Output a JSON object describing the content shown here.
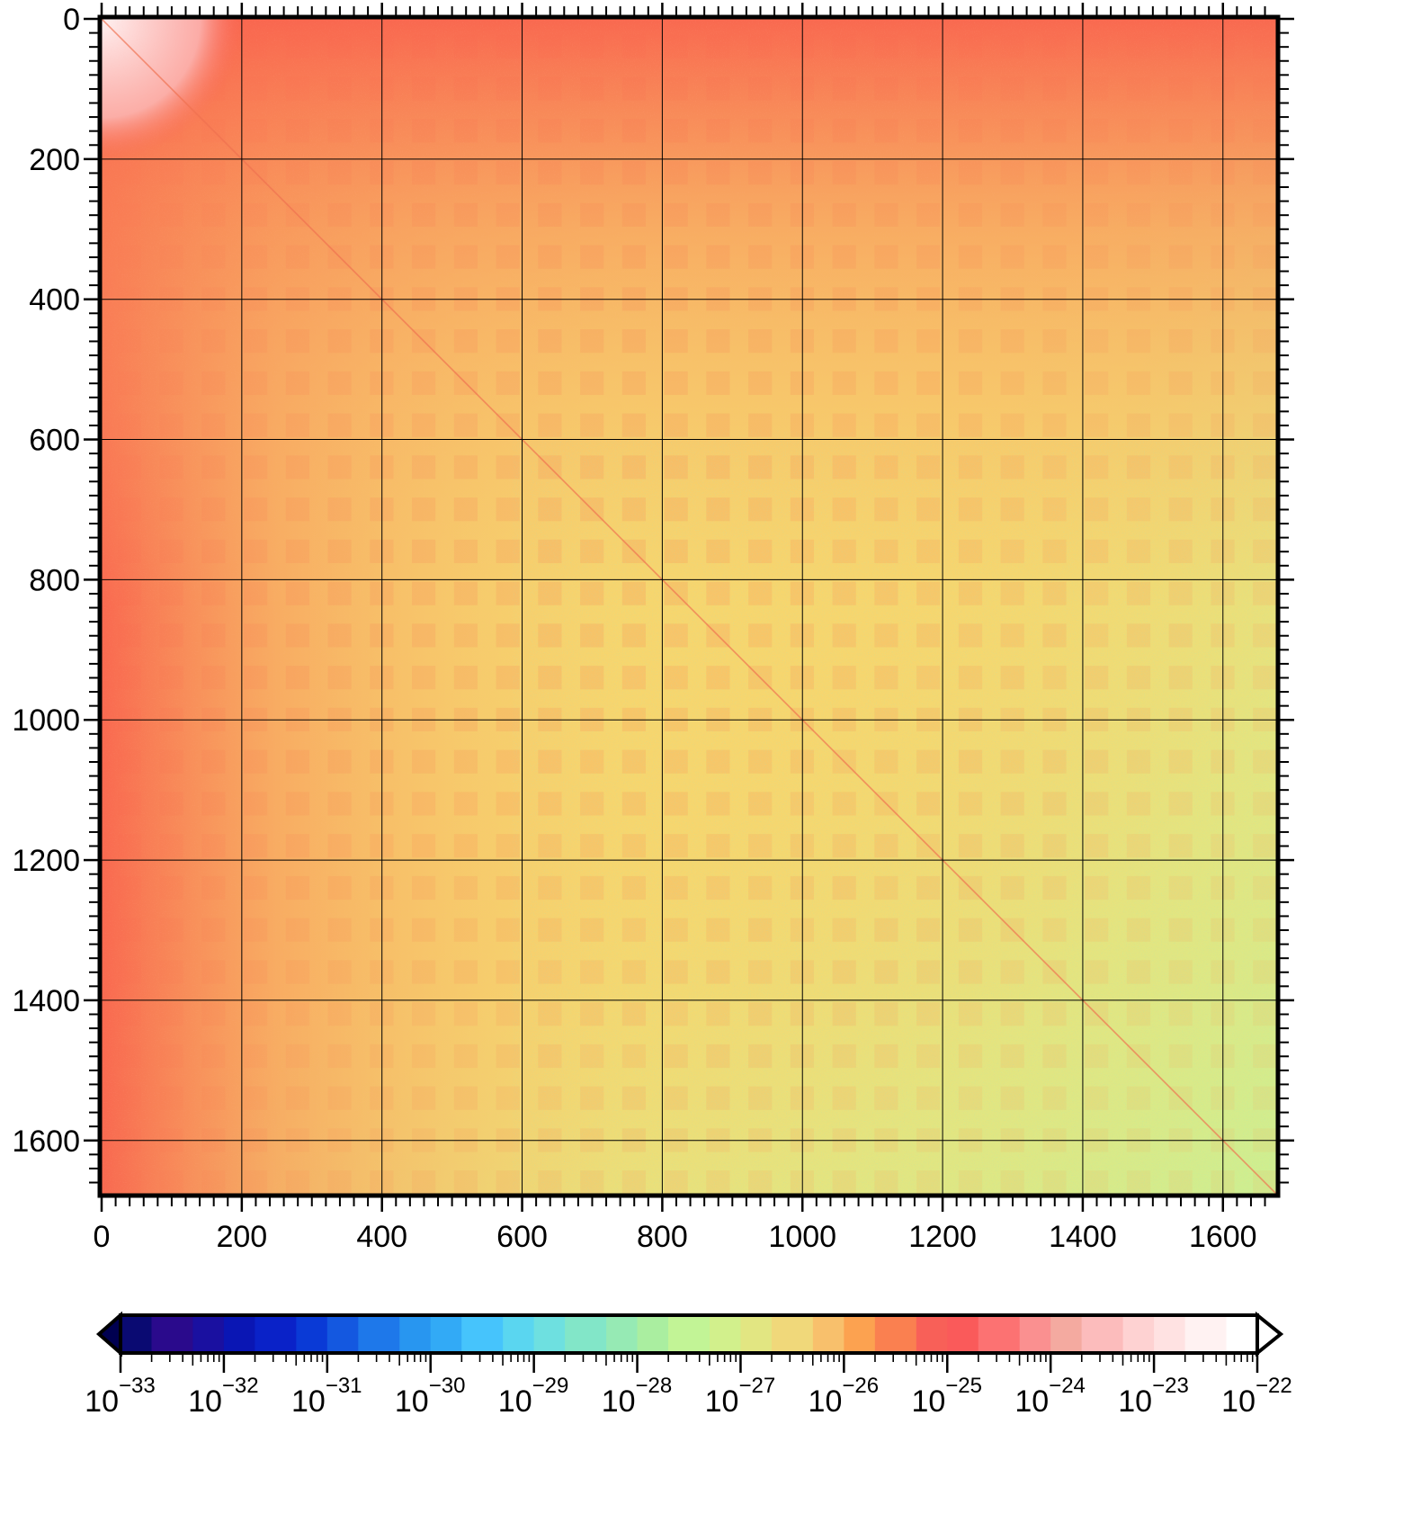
{
  "chart_data": {
    "type": "heatmap",
    "title": "",
    "xlabel": "",
    "ylabel": "",
    "x_axis": {
      "range": [
        0,
        1676
      ],
      "ticks": [
        "0",
        "200",
        "400",
        "600",
        "800",
        "1000",
        "1200",
        "1400",
        "1600"
      ],
      "tick_values": [
        0,
        200,
        400,
        600,
        800,
        1000,
        1200,
        1400,
        1600
      ],
      "position": "bottom"
    },
    "y_axis": {
      "range": [
        0,
        1676
      ],
      "inverted": true,
      "ticks": [
        "0",
        "200",
        "400",
        "600",
        "800",
        "1000",
        "1200",
        "1400",
        "1600"
      ],
      "tick_values": [
        0,
        200,
        400,
        600,
        800,
        1000,
        1200,
        1400,
        1600
      ],
      "position": "left"
    },
    "grid": true,
    "block_period": 60,
    "colorbar": {
      "position": "bottom",
      "scale": "log",
      "range_exponents": [
        -33,
        -22
      ],
      "tick_labels": [
        {
          "base": "10",
          "exp": "−33"
        },
        {
          "base": "10",
          "exp": "−32"
        },
        {
          "base": "10",
          "exp": "−31"
        },
        {
          "base": "10",
          "exp": "−30"
        },
        {
          "base": "10",
          "exp": "−29"
        },
        {
          "base": "10",
          "exp": "−28"
        },
        {
          "base": "10",
          "exp": "−27"
        },
        {
          "base": "10",
          "exp": "−26"
        },
        {
          "base": "10",
          "exp": "−25"
        },
        {
          "base": "10",
          "exp": "−24"
        },
        {
          "base": "10",
          "exp": "−23"
        },
        {
          "base": "10",
          "exp": "−22"
        }
      ],
      "low_extension_color": "#000050",
      "high_extension_color": "#ffffff",
      "segments": [
        {
          "exp": [
            -33.0,
            -32.7
          ],
          "color": "#0a0a72"
        },
        {
          "exp": [
            -32.7,
            -32.3
          ],
          "color": "#2a0a8c"
        },
        {
          "exp": [
            -32.3,
            -32.0
          ],
          "color": "#1a10a0"
        },
        {
          "exp": [
            -32.0,
            -31.7
          ],
          "color": "#0a16b4"
        },
        {
          "exp": [
            -31.7,
            -31.3
          ],
          "color": "#0a22c8"
        },
        {
          "exp": [
            -31.3,
            -31.0
          ],
          "color": "#0a3ad6"
        },
        {
          "exp": [
            -31.0,
            -30.7
          ],
          "color": "#1458e0"
        },
        {
          "exp": [
            -30.7,
            -30.3
          ],
          "color": "#1e78ea"
        },
        {
          "exp": [
            -30.3,
            -30.0
          ],
          "color": "#2896f0"
        },
        {
          "exp": [
            -30.0,
            -29.7
          ],
          "color": "#32aaf6"
        },
        {
          "exp": [
            -29.7,
            -29.3
          ],
          "color": "#46c4fc"
        },
        {
          "exp": [
            -29.3,
            -29.0
          ],
          "color": "#5ad6f0"
        },
        {
          "exp": [
            -29.0,
            -28.7
          ],
          "color": "#6ee0e0"
        },
        {
          "exp": [
            -28.7,
            -28.3
          ],
          "color": "#82e6c8"
        },
        {
          "exp": [
            -28.3,
            -28.0
          ],
          "color": "#96eab4"
        },
        {
          "exp": [
            -28.0,
            -27.7
          ],
          "color": "#aaeea0"
        },
        {
          "exp": [
            -27.7,
            -27.3
          ],
          "color": "#c2f496"
        },
        {
          "exp": [
            -27.3,
            -27.0
          ],
          "color": "#d2f08c"
        },
        {
          "exp": [
            -27.0,
            -26.7
          ],
          "color": "#e2e682"
        },
        {
          "exp": [
            -26.7,
            -26.3
          ],
          "color": "#f0d87a"
        },
        {
          "exp": [
            -26.3,
            -26.0
          ],
          "color": "#f8c06c"
        },
        {
          "exp": [
            -26.0,
            -25.7
          ],
          "color": "#fca250"
        },
        {
          "exp": [
            -25.7,
            -25.3
          ],
          "color": "#fa8050"
        },
        {
          "exp": [
            -25.3,
            -25.0
          ],
          "color": "#f86058"
        },
        {
          "exp": [
            -25.0,
            -24.7
          ],
          "color": "#fa5a5a"
        },
        {
          "exp": [
            -24.7,
            -24.3
          ],
          "color": "#fc7272"
        },
        {
          "exp": [
            -24.3,
            -24.0
          ],
          "color": "#fa9090"
        },
        {
          "exp": [
            -24.0,
            -23.7
          ],
          "color": "#f4aaa0"
        },
        {
          "exp": [
            -23.7,
            -23.3
          ],
          "color": "#fcbcbc"
        },
        {
          "exp": [
            -23.3,
            -23.0
          ],
          "color": "#fed2d2"
        },
        {
          "exp": [
            -23.0,
            -22.7
          ],
          "color": "#ffe2e2"
        },
        {
          "exp": [
            -22.7,
            -22.3
          ],
          "color": "#fff2f2"
        },
        {
          "exp": [
            -22.3,
            -22.0
          ],
          "color": "#ffffff"
        }
      ]
    }
  }
}
